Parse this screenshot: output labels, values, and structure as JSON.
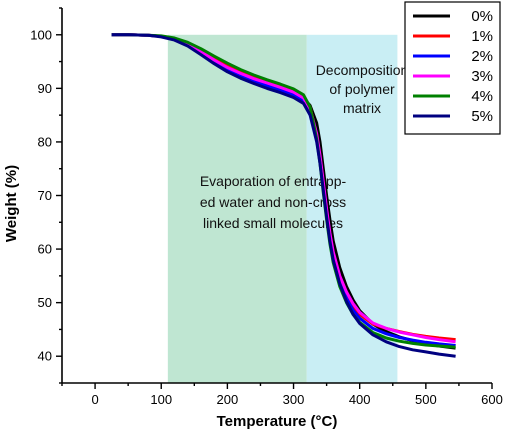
{
  "chart_data": {
    "type": "line",
    "title": "",
    "xlabel": "Temperature (°C)",
    "ylabel": "Weight (%)",
    "xlim": [
      -50,
      600
    ],
    "ylim": [
      35,
      105
    ],
    "xticks": [
      0,
      100,
      200,
      300,
      400,
      500,
      600
    ],
    "yticks": [
      40,
      50,
      60,
      70,
      80,
      90,
      100
    ],
    "grid": false,
    "legend_position": "top-right",
    "regions": [
      {
        "x_start": 110,
        "x_end": 320,
        "color": "#bfe6d2",
        "label_lines": [
          "Evaporation of entrapp-",
          "ed water and non-cross",
          "linked small molecules"
        ]
      },
      {
        "x_start": 320,
        "x_end": 457,
        "color": "#c9eef4",
        "label_lines": [
          "Decomposition",
          "of polymer",
          "matrix"
        ]
      }
    ],
    "series": [
      {
        "name": "0%",
        "color": "#000000",
        "x": [
          25,
          50,
          80,
          100,
          120,
          140,
          160,
          180,
          200,
          220,
          240,
          260,
          280,
          300,
          315,
          325,
          335,
          340,
          345,
          350,
          355,
          360,
          370,
          380,
          390,
          400,
          420,
          440,
          460,
          480,
          500,
          520,
          545
        ],
        "y": [
          100,
          100,
          99.9,
          99.7,
          99.2,
          98.2,
          96.8,
          95.2,
          93.8,
          92.6,
          91.6,
          90.8,
          90.0,
          89.2,
          88.2,
          86.8,
          83.5,
          80,
          75,
          70,
          65.5,
          61.5,
          56.5,
          53,
          50.5,
          48.5,
          46,
          44.6,
          43.6,
          42.9,
          42.3,
          41.9,
          41.5
        ]
      },
      {
        "name": "1%",
        "color": "#ff0000",
        "x": [
          25,
          50,
          80,
          100,
          120,
          140,
          160,
          180,
          200,
          220,
          240,
          260,
          280,
          300,
          315,
          325,
          335,
          340,
          345,
          350,
          355,
          360,
          370,
          380,
          390,
          400,
          420,
          440,
          460,
          480,
          500,
          520,
          545
        ],
        "y": [
          100,
          100,
          99.9,
          99.7,
          99.2,
          98.3,
          97,
          95.5,
          94.2,
          93.1,
          92.1,
          91.3,
          90.5,
          89.6,
          88.5,
          86.5,
          81,
          77,
          72,
          67,
          62.5,
          59,
          54.5,
          51.5,
          49.3,
          47.8,
          46,
          45.2,
          44.6,
          44.1,
          43.7,
          43.4,
          43.1
        ]
      },
      {
        "name": "2%",
        "color": "#0000ff",
        "x": [
          25,
          50,
          80,
          100,
          120,
          140,
          160,
          180,
          200,
          220,
          240,
          260,
          280,
          300,
          315,
          325,
          335,
          340,
          345,
          350,
          355,
          360,
          370,
          380,
          390,
          400,
          420,
          440,
          460,
          480,
          500,
          520,
          545
        ],
        "y": [
          100,
          100,
          99.9,
          99.7,
          99.1,
          98.1,
          96.6,
          95,
          93.6,
          92.4,
          91.4,
          90.5,
          89.7,
          88.8,
          87.6,
          85.5,
          80.5,
          76.5,
          71.5,
          66.5,
          62,
          58.5,
          54,
          50.8,
          48.6,
          47.1,
          45.2,
          44.2,
          43.5,
          43,
          42.6,
          42.3,
          42
        ]
      },
      {
        "name": "3%",
        "color": "#ff00ff",
        "x": [
          25,
          50,
          80,
          100,
          120,
          140,
          160,
          180,
          200,
          220,
          240,
          260,
          280,
          300,
          315,
          325,
          335,
          340,
          345,
          350,
          355,
          360,
          370,
          380,
          390,
          400,
          420,
          440,
          460,
          480,
          500,
          520,
          545
        ],
        "y": [
          100,
          100,
          99.9,
          99.7,
          99.2,
          98.2,
          96.9,
          95.3,
          93.9,
          92.8,
          91.8,
          91,
          90.2,
          89.3,
          88.2,
          86.2,
          81.5,
          77.5,
          72.5,
          67.5,
          63,
          59.5,
          55,
          52,
          49.8,
          48.2,
          46.2,
          45.2,
          44.5,
          44,
          43.5,
          43.1,
          42.7
        ]
      },
      {
        "name": "4%",
        "color": "#008000",
        "x": [
          25,
          50,
          80,
          100,
          120,
          140,
          160,
          180,
          200,
          220,
          240,
          260,
          280,
          300,
          315,
          325,
          335,
          340,
          345,
          350,
          355,
          360,
          370,
          380,
          390,
          400,
          420,
          440,
          460,
          480,
          500,
          520,
          545
        ],
        "y": [
          100,
          100,
          99.9,
          99.8,
          99.4,
          98.6,
          97.4,
          96,
          94.7,
          93.5,
          92.5,
          91.6,
          90.8,
          89.9,
          88.8,
          86.5,
          80.5,
          76,
          70.5,
          65.5,
          61,
          57.5,
          53,
          50,
          47.8,
          46.3,
          44.4,
          43.4,
          42.8,
          42.4,
          42.1,
          41.9,
          41.7
        ]
      },
      {
        "name": "5%",
        "color": "#000080",
        "x": [
          25,
          50,
          80,
          100,
          120,
          140,
          160,
          180,
          200,
          220,
          240,
          260,
          280,
          300,
          315,
          325,
          335,
          340,
          345,
          350,
          355,
          360,
          370,
          380,
          390,
          400,
          420,
          440,
          460,
          480,
          500,
          520,
          545
        ],
        "y": [
          100,
          100,
          99.9,
          99.6,
          99,
          97.9,
          96.3,
          94.6,
          93.1,
          91.9,
          90.9,
          90,
          89.2,
          88.3,
          87.2,
          85,
          80,
          76,
          71,
          66,
          61.5,
          58,
          53.5,
          50.2,
          47.8,
          46.1,
          44,
          42.7,
          41.8,
          41.2,
          40.8,
          40.4,
          40
        ]
      }
    ]
  }
}
